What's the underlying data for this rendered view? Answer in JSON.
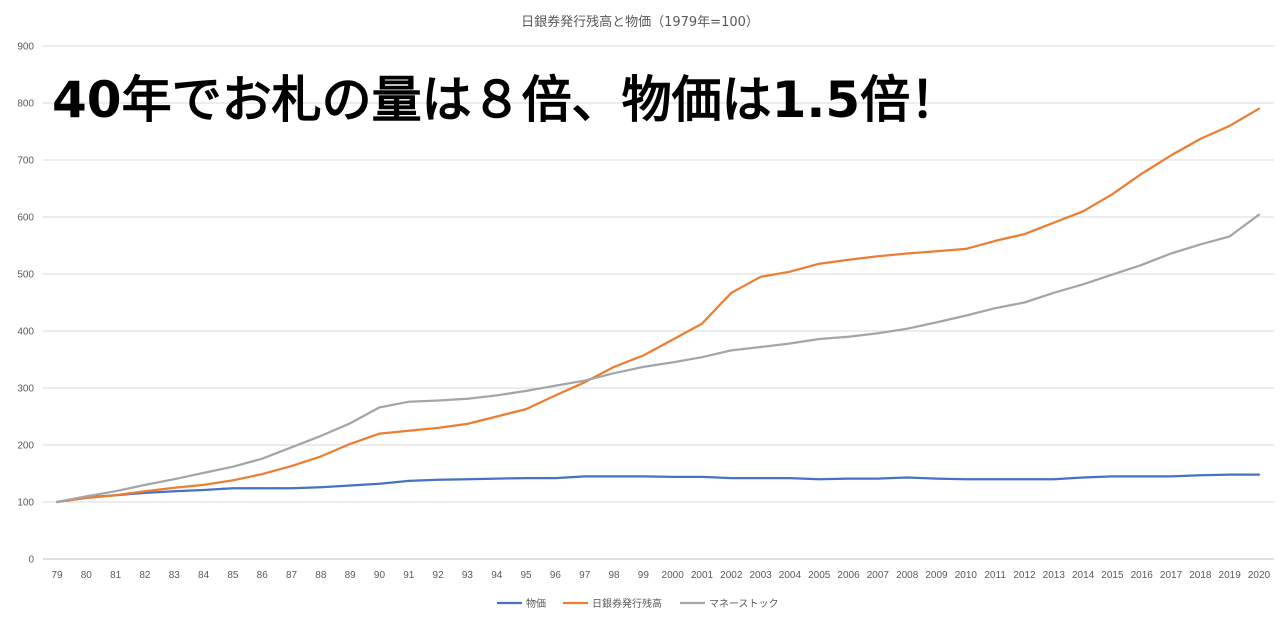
{
  "chart_data": {
    "type": "line",
    "title": "日銀券発行残高と物価（1979年=100）",
    "annotation": "40年でお札の量は８倍、物価は1.5倍！",
    "ylim": [
      0,
      900
    ],
    "yticks": [
      0,
      100,
      200,
      300,
      400,
      500,
      600,
      700,
      800,
      900
    ],
    "grid": true,
    "legend_position": "bottom",
    "categories": [
      "79",
      "80",
      "81",
      "82",
      "83",
      "84",
      "85",
      "86",
      "87",
      "88",
      "89",
      "90",
      "91",
      "92",
      "93",
      "94",
      "95",
      "96",
      "97",
      "98",
      "99",
      "2000",
      "2001",
      "2002",
      "2003",
      "2004",
      "2005",
      "2006",
      "2007",
      "2008",
      "2009",
      "2010",
      "2011",
      "2012",
      "2013",
      "2014",
      "2015",
      "2016",
      "2017",
      "2018",
      "2019",
      "2020"
    ],
    "series": [
      {
        "name": "物価",
        "color": "#4472c4",
        "values": [
          100,
          108,
          112,
          116,
          119,
          121,
          124,
          124,
          124,
          126,
          129,
          132,
          137,
          139,
          140,
          141,
          142,
          142,
          145,
          145,
          145,
          144,
          144,
          142,
          142,
          142,
          140,
          141,
          141,
          143,
          141,
          140,
          140,
          140,
          140,
          143,
          145,
          145,
          145,
          147,
          148,
          148
        ]
      },
      {
        "name": "日銀券発行残高",
        "color": "#ed7d31",
        "values": [
          100,
          107,
          112,
          119,
          125,
          130,
          138,
          149,
          163,
          180,
          202,
          220,
          225,
          230,
          237,
          250,
          263,
          287,
          310,
          337,
          357,
          385,
          413,
          467,
          495,
          504,
          518,
          525,
          531,
          536,
          540,
          544,
          558,
          570,
          590,
          610,
          640,
          676,
          708,
          737,
          760,
          790
        ]
      },
      {
        "name": "マネーストック",
        "color": "#a5a5a5",
        "values": [
          100,
          110,
          119,
          130,
          140,
          151,
          162,
          176,
          196,
          216,
          238,
          266,
          276,
          278,
          281,
          287,
          295,
          304,
          313,
          326,
          337,
          345,
          354,
          366,
          372,
          378,
          386,
          390,
          396,
          404,
          415,
          427,
          440,
          450,
          467,
          482,
          499,
          516,
          536,
          552,
          566,
          604
        ]
      }
    ]
  }
}
